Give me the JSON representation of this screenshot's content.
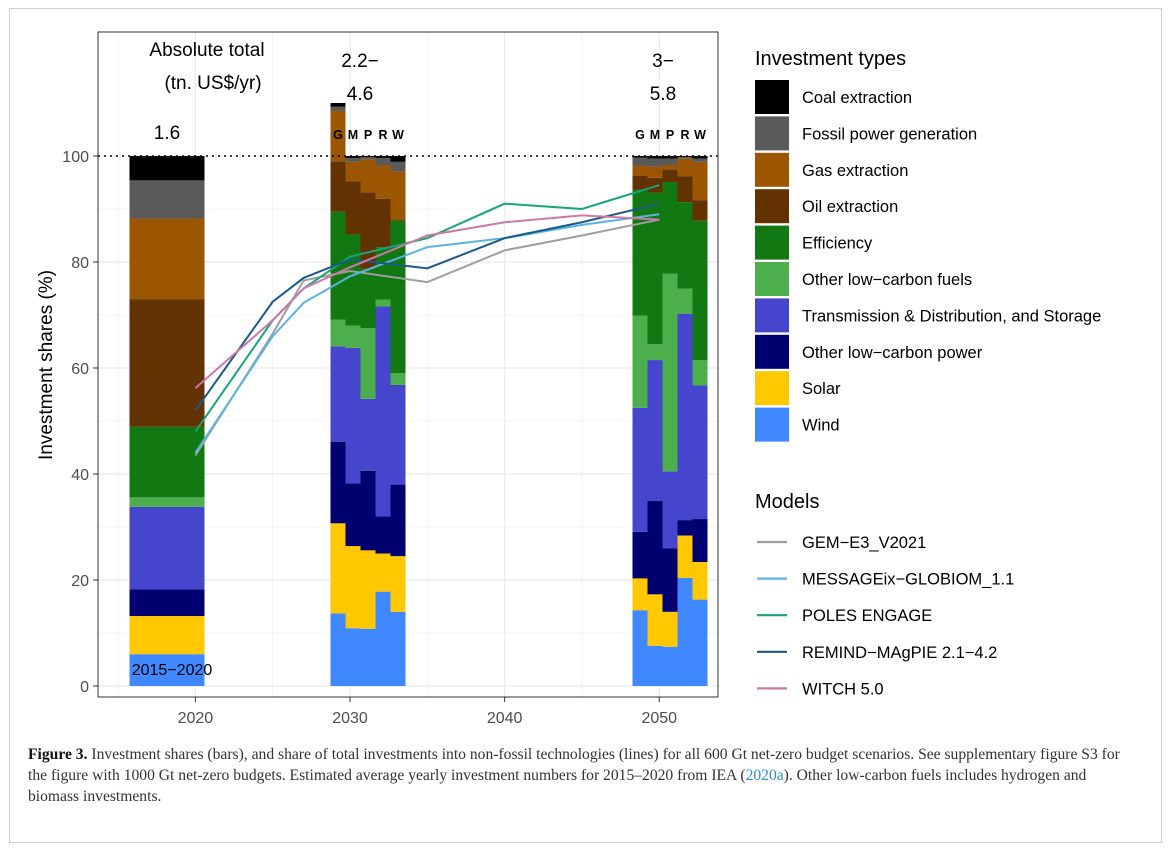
{
  "chart_data": {
    "type": "bar",
    "ylabel": "Investment shares (%)",
    "ylim": [
      0,
      100
    ],
    "xlim": [
      2013.7,
      2053.8
    ],
    "x_ticks": [
      2020,
      2030,
      2040,
      2050
    ],
    "y_ticks": [
      0,
      20,
      40,
      60,
      80,
      100
    ],
    "grid": true,
    "reference_line": {
      "y": 100,
      "style": "dotted"
    },
    "historic_label": "2015−2020",
    "annotations": {
      "abs_title_1": "Absolute total",
      "abs_title_2": "(tn. US$/yr)",
      "total_2020": "1.6",
      "total_2030_a": "2.2−",
      "total_2030_b": "4.6",
      "total_2050_a": "3−",
      "total_2050_b": "5.8"
    },
    "model_letters": [
      "G",
      "M",
      "P",
      "R",
      "W"
    ],
    "investment_types": [
      {
        "name": "Coal extraction",
        "color": "#000000"
      },
      {
        "name": "Fossil power generation",
        "color": "#5a5a5a"
      },
      {
        "name": "Gas extraction",
        "color": "#9c5500"
      },
      {
        "name": "Oil extraction",
        "color": "#623200"
      },
      {
        "name": "Efficiency",
        "color": "#127812"
      },
      {
        "name": "Other low−carbon fuels",
        "color": "#4caf4c"
      },
      {
        "name": "Transmission & Distribution, and Storage",
        "color": "#4646cc"
      },
      {
        "name": "Other low−carbon power",
        "color": "#000070"
      },
      {
        "name": "Solar",
        "color": "#ffc800"
      },
      {
        "name": "Wind",
        "color": "#3f88ff"
      }
    ],
    "stacks_order_bottom_to_top": [
      "Wind",
      "Solar",
      "Other low−carbon power",
      "Transmission & Distribution, and Storage",
      "Other low−carbon fuels",
      "Efficiency",
      "Oil extraction",
      "Gas extraction",
      "Fossil power generation",
      "Coal extraction"
    ],
    "bars": [
      {
        "label": "2015−2020",
        "x_center": 2018.0,
        "width": 5.0,
        "values": [
          6.0,
          7.2,
          5.0,
          15.6,
          1.8,
          13.3,
          24.1,
          15.2,
          7.2,
          4.6
        ]
      },
      {
        "label": "G 2030",
        "x_center": 2028.8,
        "width": 2.0,
        "values": [
          13.7,
          17.0,
          15.4,
          18.0,
          5.0,
          20.4,
          9.5,
          9.5,
          0.8,
          0.7
        ]
      },
      {
        "label": "M 2030",
        "x_center": 2030.8,
        "width": 2.0,
        "values": [
          10.9,
          15.5,
          11.8,
          25.6,
          4.2,
          17.2,
          10.0,
          3.7,
          0.7,
          0.4
        ]
      },
      {
        "label": "P 2030",
        "x_center": 2032.8,
        "width": 2.0,
        "values": [
          10.8,
          14.8,
          15.0,
          13.6,
          13.3,
          11.2,
          14.4,
          6.3,
          0.4,
          0.2
        ]
      },
      {
        "label": "R 2030",
        "x_center": 2034.8,
        "width": 2.0,
        "values": [
          17.8,
          7.2,
          7.0,
          39.6,
          1.3,
          9.9,
          9.1,
          6.4,
          1.3,
          0.4
        ]
      },
      {
        "label": "W 2030",
        "x_center": 2036.8,
        "width": 2.0,
        "values": [
          14.0,
          10.5,
          13.5,
          18.8,
          2.2,
          28.8,
          0.2,
          9.1,
          1.8,
          1.1
        ]
      },
      {
        "label": "G 2050",
        "x_center": 2048.8,
        "width": 2.0,
        "values": [
          14.3,
          6.0,
          8.8,
          23.4,
          17.4,
          23.7,
          2.7,
          1.9,
          1.5,
          0.3
        ]
      },
      {
        "label": "M 2050",
        "x_center": 2050.8,
        "width": 2.0,
        "values": [
          7.6,
          9.7,
          17.6,
          26.6,
          3.0,
          28.6,
          2.8,
          2.1,
          1.5,
          0.5
        ]
      },
      {
        "label": "P 2050",
        "x_center": 2052.8,
        "width": 2.0,
        "values": [
          7.4,
          6.6,
          12.0,
          14.5,
          37.3,
          17.3,
          2.4,
          0.8,
          1.2,
          0.5
        ]
      },
      {
        "label": "R 2050",
        "x_center": 2054.8,
        "width": 2.0,
        "values": [
          20.4,
          8.0,
          2.9,
          38.9,
          4.8,
          16.3,
          4.9,
          3.3,
          0.3,
          0.2
        ]
      },
      {
        "label": "W 2050",
        "x_center": 2056.8,
        "width": 2.0,
        "values": [
          16.3,
          7.1,
          8.1,
          25.2,
          4.8,
          26.3,
          3.8,
          7.3,
          0.6,
          0.5
        ]
      }
    ],
    "models_legend_title": "Models",
    "types_legend_title": "Investment types",
    "series": [
      {
        "name": "GEM−E3_V2021",
        "color": "#9e9e9e",
        "x": [
          2020,
          2025,
          2027,
          2030,
          2035,
          2040,
          2045,
          2050
        ],
        "values": [
          43.5,
          66.5,
          76.5,
          78.3,
          76.2,
          82.2,
          85.0,
          88.0
        ]
      },
      {
        "name": "MESSAGEix−GLOBIOM_1.1",
        "color": "#5ab4e0",
        "x": [
          2020,
          2025,
          2027,
          2030,
          2035,
          2040,
          2045,
          2050
        ],
        "values": [
          44.0,
          66.0,
          72.3,
          77.3,
          82.8,
          84.5,
          87.0,
          89.0
        ]
      },
      {
        "name": "POLES ENGAGE",
        "color": "#17a57a",
        "x": [
          2020,
          2025,
          2027,
          2030,
          2035,
          2040,
          2045,
          2050
        ],
        "values": [
          48.0,
          69.0,
          75.0,
          81.0,
          84.5,
          91.0,
          90.0,
          94.5
        ]
      },
      {
        "name": "REMIND−MAgPIE 2.1−4.2",
        "color": "#1a5a8a",
        "x": [
          2020,
          2025,
          2027,
          2030,
          2035,
          2040,
          2045,
          2050
        ],
        "values": [
          52.0,
          72.5,
          77.0,
          80.5,
          78.8,
          84.5,
          87.5,
          91.0
        ]
      },
      {
        "name": "WITCH 5.0",
        "color": "#cc79a7",
        "x": [
          2020,
          2025,
          2027,
          2030,
          2035,
          2040,
          2045,
          2050
        ],
        "values": [
          56.2,
          69.0,
          75.0,
          79.0,
          85.0,
          87.5,
          88.8,
          88.0
        ]
      }
    ]
  },
  "caption": {
    "label": "Figure 3.",
    "text_1": " Investment shares (bars), and share of total investments into non-fossil technologies (lines) for all 600 Gt net-zero budget scenarios. See supplementary figure S3 for the figure with 1000 Gt net-zero budgets. Estimated average yearly investment numbers for 2015–2020 from IEA (",
    "ref": "2020a",
    "text_2": "). Other low-carbon fuels includes hydrogen and biomass investments."
  }
}
